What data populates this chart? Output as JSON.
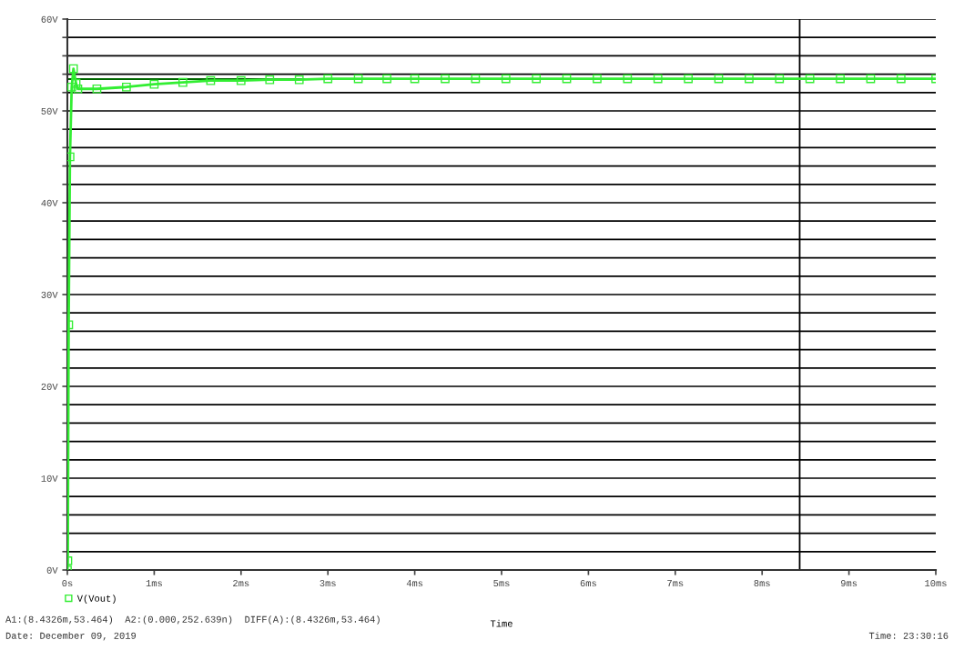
{
  "chart_data": {
    "type": "line",
    "xlabel": "Time",
    "x": [
      0,
      0.005,
      0.015,
      0.03,
      0.05,
      0.07,
      0.1,
      0.12,
      0.34,
      0.68,
      1.0,
      1.33,
      1.65,
      2.0,
      2.33,
      2.67,
      3.0,
      3.35,
      3.68,
      4.0,
      4.35,
      4.7,
      5.05,
      5.4,
      5.75,
      6.1,
      6.45,
      6.8,
      7.15,
      7.5,
      7.85,
      8.2,
      8.55,
      8.9,
      9.25,
      9.6,
      10.0
    ],
    "series": [
      {
        "name": "V(Vout)",
        "color": "#33ee33",
        "values": [
          0,
          1,
          26.7,
          45,
          52.6,
          54.6,
          53.0,
          52.4,
          52.4,
          52.6,
          52.9,
          53.1,
          53.3,
          53.3,
          53.4,
          53.4,
          53.5,
          53.5,
          53.5,
          53.5,
          53.5,
          53.5,
          53.5,
          53.5,
          53.5,
          53.5,
          53.5,
          53.5,
          53.5,
          53.5,
          53.5,
          53.5,
          53.5,
          53.5,
          53.5,
          53.5,
          53.5
        ]
      }
    ],
    "xlim": [
      0,
      10
    ],
    "ylim": [
      0,
      60
    ],
    "xticks": [
      {
        "value": 0,
        "label": "0s"
      },
      {
        "value": 1,
        "label": "1ms"
      },
      {
        "value": 2,
        "label": "2ms"
      },
      {
        "value": 3,
        "label": "3ms"
      },
      {
        "value": 4,
        "label": "4ms"
      },
      {
        "value": 5,
        "label": "5ms"
      },
      {
        "value": 6,
        "label": "6ms"
      },
      {
        "value": 7,
        "label": "7ms"
      },
      {
        "value": 8,
        "label": "8ms"
      },
      {
        "value": 9,
        "label": "9ms"
      },
      {
        "value": 10,
        "label": "10ms"
      }
    ],
    "yticks": [
      {
        "value": 0,
        "label": "0V"
      },
      {
        "value": 2,
        "label": null
      },
      {
        "value": 4,
        "label": null
      },
      {
        "value": 6,
        "label": null
      },
      {
        "value": 8,
        "label": null
      },
      {
        "value": 10,
        "label": "10V"
      },
      {
        "value": 12,
        "label": null
      },
      {
        "value": 14,
        "label": null
      },
      {
        "value": 16,
        "label": null
      },
      {
        "value": 18,
        "label": null
      },
      {
        "value": 20,
        "label": "20V"
      },
      {
        "value": 22,
        "label": null
      },
      {
        "value": 24,
        "label": null
      },
      {
        "value": 26,
        "label": null
      },
      {
        "value": 28,
        "label": null
      },
      {
        "value": 30,
        "label": "30V"
      },
      {
        "value": 32,
        "label": null
      },
      {
        "value": 34,
        "label": null
      },
      {
        "value": 36,
        "label": null
      },
      {
        "value": 38,
        "label": null
      },
      {
        "value": 40,
        "label": "40V"
      },
      {
        "value": 42,
        "label": null
      },
      {
        "value": 44,
        "label": null
      },
      {
        "value": 46,
        "label": null
      },
      {
        "value": 48,
        "label": null
      },
      {
        "value": 50,
        "label": "50V"
      },
      {
        "value": 52,
        "label": null
      },
      {
        "value": 54,
        "label": null
      },
      {
        "value": 56,
        "label": null
      },
      {
        "value": 58,
        "label": null
      },
      {
        "value": 60,
        "label": "60V"
      }
    ],
    "grid": "y",
    "marker": "square",
    "legend": "bottom left",
    "ref_lines": [
      {
        "axis": "x",
        "value": 8.4326,
        "color": "#000000"
      },
      {
        "axis": "y",
        "value": 53.464,
        "color": "#006600"
      }
    ],
    "annotations": [
      "A1:(8.4326m,53.464)  A2:(0.000,252.639n)  DIFF(A):(8.4326m,53.464)",
      "Date: December 09, 2019",
      "Time: 23:30:16"
    ]
  }
}
